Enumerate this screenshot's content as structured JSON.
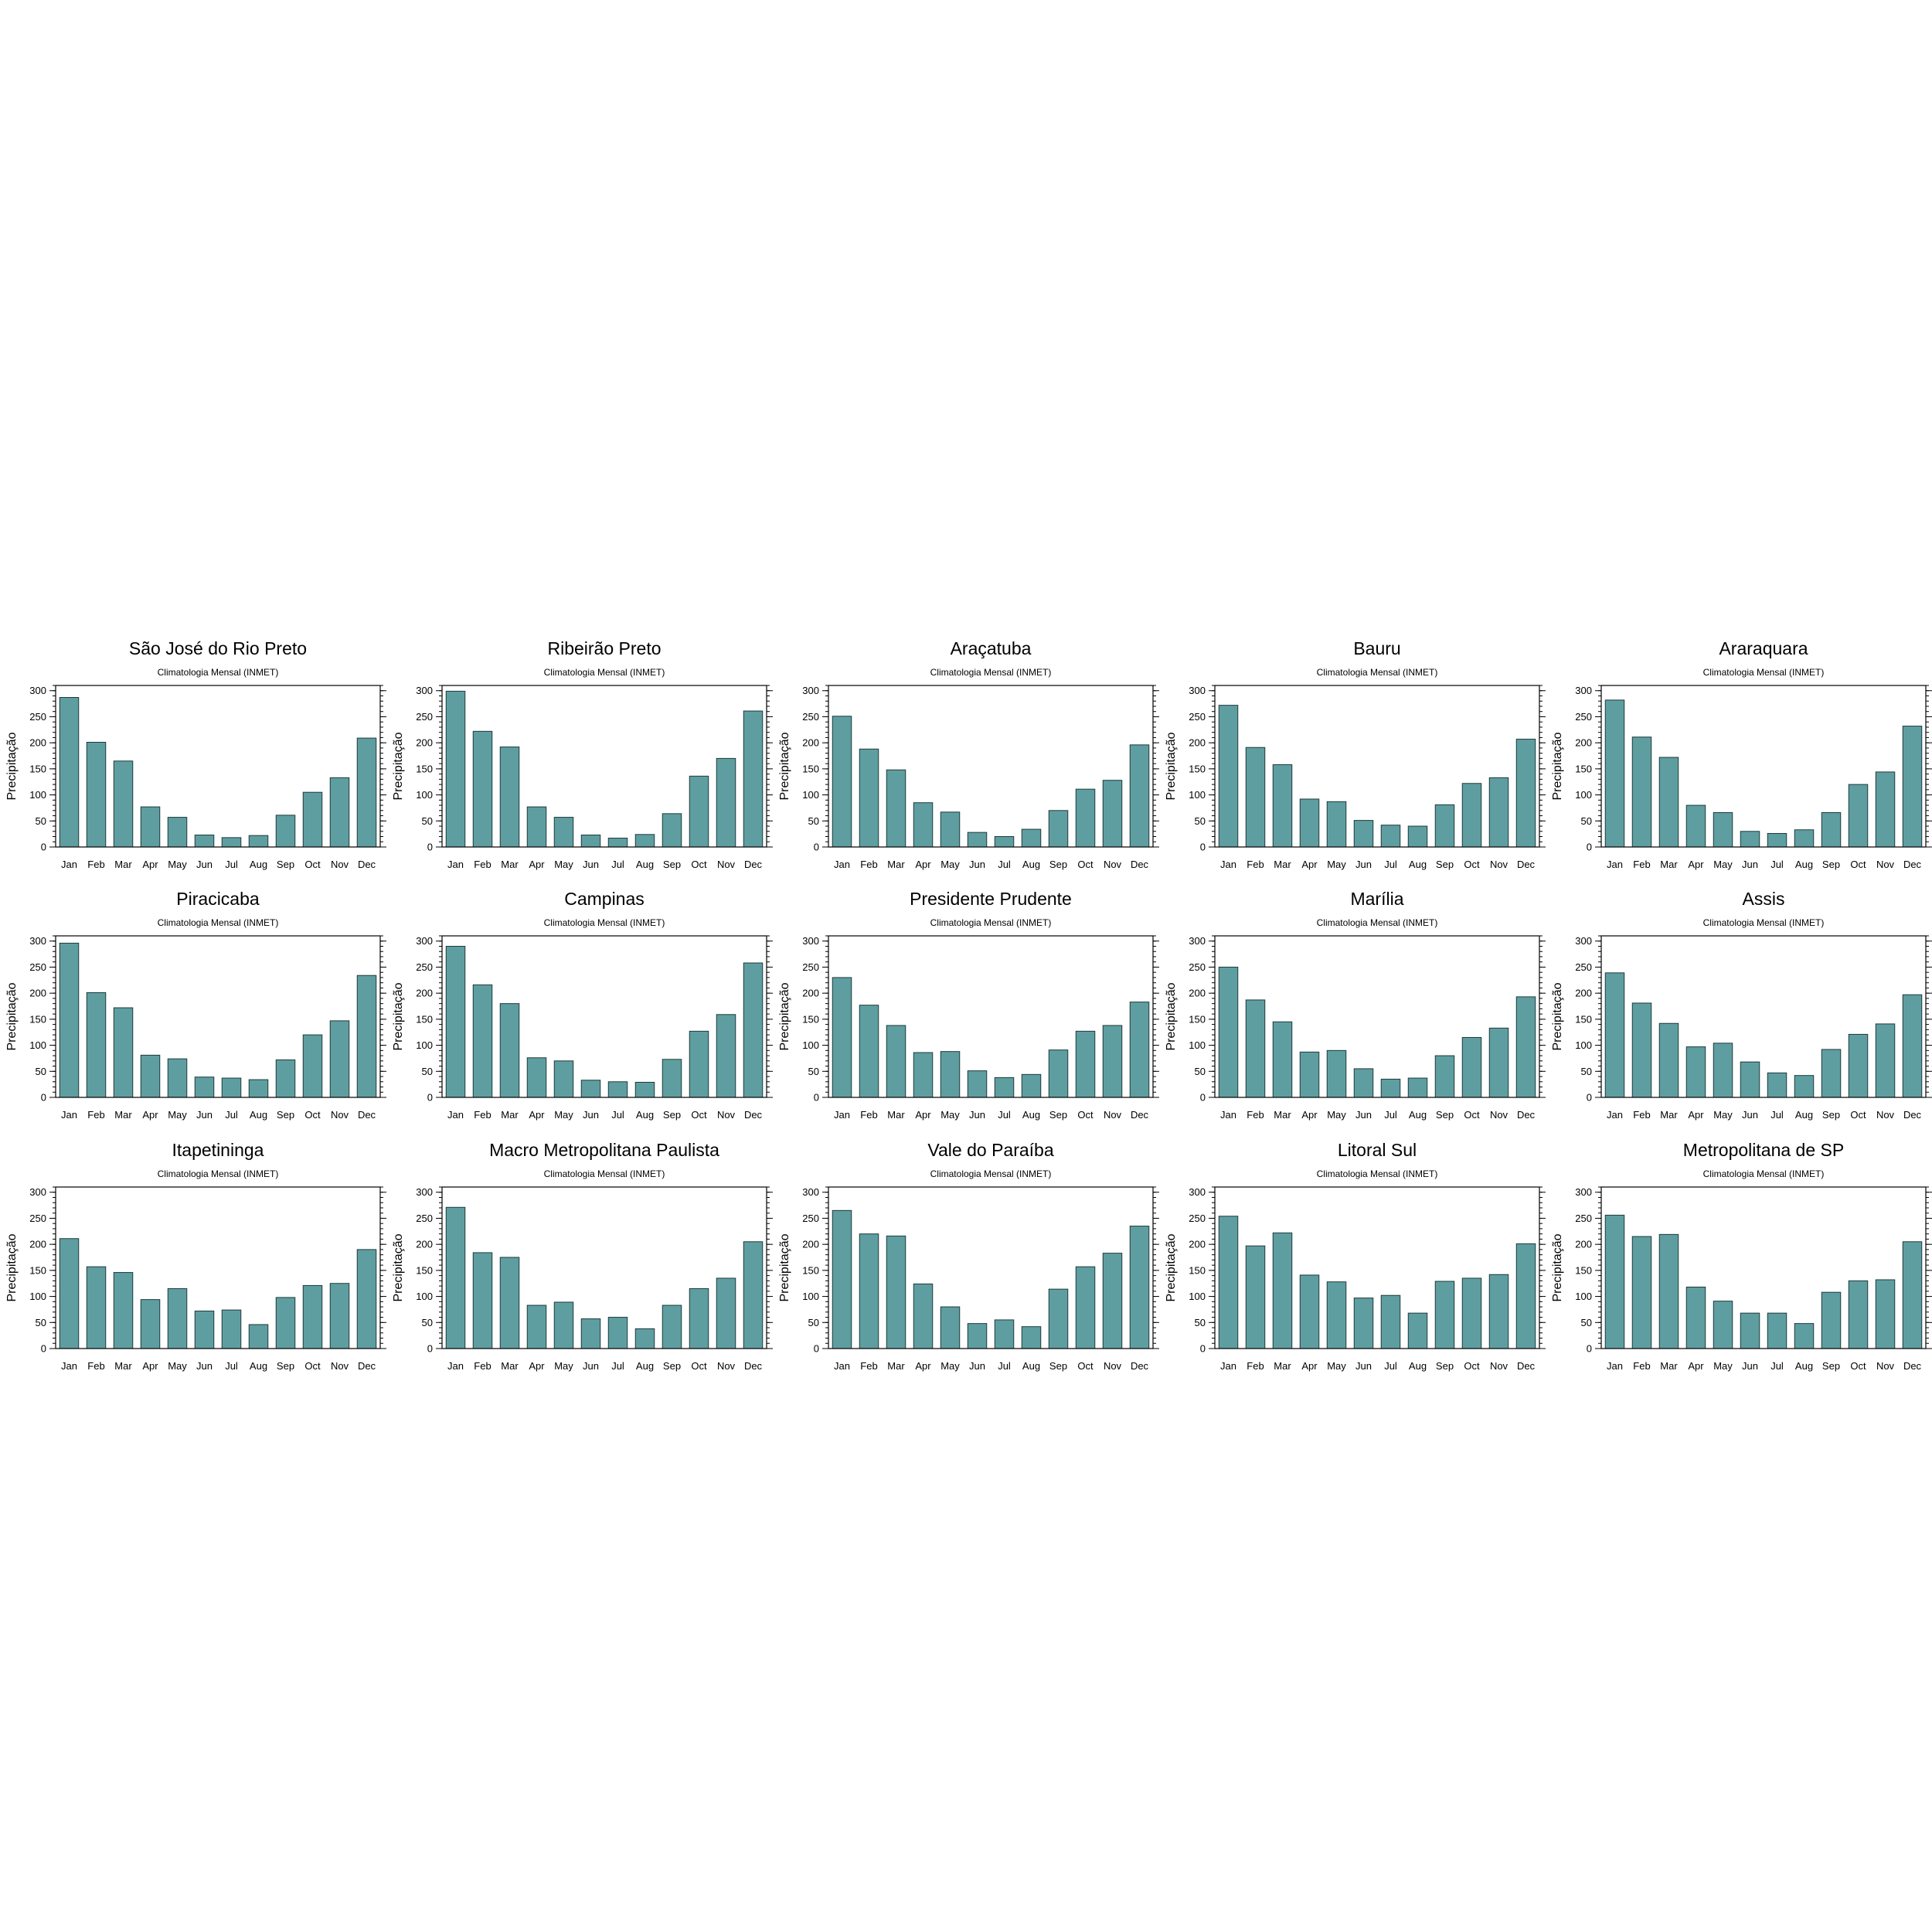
{
  "bar_color": "#5f9ea0",
  "chart_data": [
    {
      "type": "bar",
      "title": "São José do Rio Preto",
      "subtitle": "Climatologia Mensal (INMET)",
      "ylabel": "Precipitação",
      "ylim": [
        0,
        310
      ],
      "yticks": [
        0,
        50,
        100,
        150,
        200,
        250,
        300
      ],
      "categories": [
        "Jan",
        "Feb",
        "Mar",
        "Apr",
        "May",
        "Jun",
        "Jul",
        "Aug",
        "Sep",
        "Oct",
        "Nov",
        "Dec"
      ],
      "values": [
        287,
        201,
        165,
        77,
        57,
        23,
        18,
        22,
        61,
        105,
        133,
        209
      ]
    },
    {
      "type": "bar",
      "title": "Ribeirão Preto",
      "subtitle": "Climatologia Mensal (INMET)",
      "ylabel": "Precipitação",
      "ylim": [
        0,
        310
      ],
      "yticks": [
        0,
        50,
        100,
        150,
        200,
        250,
        300
      ],
      "categories": [
        "Jan",
        "Feb",
        "Mar",
        "Apr",
        "May",
        "Jun",
        "Jul",
        "Aug",
        "Sep",
        "Oct",
        "Nov",
        "Dec"
      ],
      "values": [
        299,
        222,
        192,
        77,
        57,
        23,
        17,
        24,
        64,
        136,
        170,
        261
      ]
    },
    {
      "type": "bar",
      "title": "Araçatuba",
      "subtitle": "Climatologia Mensal (INMET)",
      "ylabel": "Precipitação",
      "ylim": [
        0,
        310
      ],
      "yticks": [
        0,
        50,
        100,
        150,
        200,
        250,
        300
      ],
      "categories": [
        "Jan",
        "Feb",
        "Mar",
        "Apr",
        "May",
        "Jun",
        "Jul",
        "Aug",
        "Sep",
        "Oct",
        "Nov",
        "Dec"
      ],
      "values": [
        251,
        188,
        148,
        85,
        67,
        28,
        20,
        34,
        70,
        111,
        128,
        196
      ]
    },
    {
      "type": "bar",
      "title": "Bauru",
      "subtitle": "Climatologia Mensal (INMET)",
      "ylabel": "Precipitação",
      "ylim": [
        0,
        310
      ],
      "yticks": [
        0,
        50,
        100,
        150,
        200,
        250,
        300
      ],
      "categories": [
        "Jan",
        "Feb",
        "Mar",
        "Apr",
        "May",
        "Jun",
        "Jul",
        "Aug",
        "Sep",
        "Oct",
        "Nov",
        "Dec"
      ],
      "values": [
        272,
        191,
        158,
        92,
        87,
        51,
        42,
        40,
        81,
        122,
        133,
        207
      ]
    },
    {
      "type": "bar",
      "title": "Araraquara",
      "subtitle": "Climatologia Mensal (INMET)",
      "ylabel": "Precipitação",
      "ylim": [
        0,
        310
      ],
      "yticks": [
        0,
        50,
        100,
        150,
        200,
        250,
        300
      ],
      "categories": [
        "Jan",
        "Feb",
        "Mar",
        "Apr",
        "May",
        "Jun",
        "Jul",
        "Aug",
        "Sep",
        "Oct",
        "Nov",
        "Dec"
      ],
      "values": [
        282,
        211,
        172,
        80,
        66,
        30,
        26,
        33,
        66,
        120,
        144,
        232
      ]
    },
    {
      "type": "bar",
      "title": "Piracicaba",
      "subtitle": "Climatologia Mensal (INMET)",
      "ylabel": "Precipitação",
      "ylim": [
        0,
        310
      ],
      "yticks": [
        0,
        50,
        100,
        150,
        200,
        250,
        300
      ],
      "categories": [
        "Jan",
        "Feb",
        "Mar",
        "Apr",
        "May",
        "Jun",
        "Jul",
        "Aug",
        "Sep",
        "Oct",
        "Nov",
        "Dec"
      ],
      "values": [
        296,
        201,
        172,
        81,
        74,
        39,
        37,
        34,
        72,
        120,
        147,
        234
      ]
    },
    {
      "type": "bar",
      "title": "Campinas",
      "subtitle": "Climatologia Mensal (INMET)",
      "ylabel": "Precipitação",
      "ylim": [
        0,
        310
      ],
      "yticks": [
        0,
        50,
        100,
        150,
        200,
        250,
        300
      ],
      "categories": [
        "Jan",
        "Feb",
        "Mar",
        "Apr",
        "May",
        "Jun",
        "Jul",
        "Aug",
        "Sep",
        "Oct",
        "Nov",
        "Dec"
      ],
      "values": [
        290,
        216,
        180,
        76,
        70,
        33,
        30,
        29,
        73,
        127,
        159,
        258
      ]
    },
    {
      "type": "bar",
      "title": "Presidente Prudente",
      "subtitle": "Climatologia Mensal (INMET)",
      "ylabel": "Precipitação",
      "ylim": [
        0,
        310
      ],
      "yticks": [
        0,
        50,
        100,
        150,
        200,
        250,
        300
      ],
      "categories": [
        "Jan",
        "Feb",
        "Mar",
        "Apr",
        "May",
        "Jun",
        "Jul",
        "Aug",
        "Sep",
        "Oct",
        "Nov",
        "Dec"
      ],
      "values": [
        230,
        177,
        138,
        86,
        88,
        51,
        38,
        44,
        91,
        127,
        138,
        183
      ]
    },
    {
      "type": "bar",
      "title": "Marília",
      "subtitle": "Climatologia Mensal (INMET)",
      "ylabel": "Precipitação",
      "ylim": [
        0,
        310
      ],
      "yticks": [
        0,
        50,
        100,
        150,
        200,
        250,
        300
      ],
      "categories": [
        "Jan",
        "Feb",
        "Mar",
        "Apr",
        "May",
        "Jun",
        "Jul",
        "Aug",
        "Sep",
        "Oct",
        "Nov",
        "Dec"
      ],
      "values": [
        250,
        187,
        145,
        87,
        90,
        55,
        35,
        37,
        80,
        115,
        133,
        193
      ]
    },
    {
      "type": "bar",
      "title": "Assis",
      "subtitle": "Climatologia Mensal (INMET)",
      "ylabel": "Precipitação",
      "ylim": [
        0,
        310
      ],
      "yticks": [
        0,
        50,
        100,
        150,
        200,
        250,
        300
      ],
      "categories": [
        "Jan",
        "Feb",
        "Mar",
        "Apr",
        "May",
        "Jun",
        "Jul",
        "Aug",
        "Sep",
        "Oct",
        "Nov",
        "Dec"
      ],
      "values": [
        239,
        181,
        142,
        97,
        104,
        68,
        47,
        42,
        92,
        121,
        141,
        197
      ]
    },
    {
      "type": "bar",
      "title": "Itapetininga",
      "subtitle": "Climatologia Mensal (INMET)",
      "ylabel": "Precipitação",
      "ylim": [
        0,
        310
      ],
      "yticks": [
        0,
        50,
        100,
        150,
        200,
        250,
        300
      ],
      "categories": [
        "Jan",
        "Feb",
        "Mar",
        "Apr",
        "May",
        "Jun",
        "Jul",
        "Aug",
        "Sep",
        "Oct",
        "Nov",
        "Dec"
      ],
      "values": [
        211,
        157,
        146,
        94,
        115,
        72,
        74,
        46,
        98,
        121,
        125,
        190
      ]
    },
    {
      "type": "bar",
      "title": "Macro Metropolitana Paulista",
      "subtitle": "Climatologia Mensal (INMET)",
      "ylabel": "Precipitação",
      "ylim": [
        0,
        310
      ],
      "yticks": [
        0,
        50,
        100,
        150,
        200,
        250,
        300
      ],
      "categories": [
        "Jan",
        "Feb",
        "Mar",
        "Apr",
        "May",
        "Jun",
        "Jul",
        "Aug",
        "Sep",
        "Oct",
        "Nov",
        "Dec"
      ],
      "values": [
        271,
        184,
        175,
        83,
        89,
        57,
        60,
        38,
        83,
        115,
        135,
        205
      ]
    },
    {
      "type": "bar",
      "title": "Vale do Paraíba",
      "subtitle": "Climatologia Mensal (INMET)",
      "ylabel": "Precipitação",
      "ylim": [
        0,
        310
      ],
      "yticks": [
        0,
        50,
        100,
        150,
        200,
        250,
        300
      ],
      "categories": [
        "Jan",
        "Feb",
        "Mar",
        "Apr",
        "May",
        "Jun",
        "Jul",
        "Aug",
        "Sep",
        "Oct",
        "Nov",
        "Dec"
      ],
      "values": [
        265,
        220,
        216,
        124,
        80,
        48,
        55,
        42,
        114,
        157,
        183,
        235
      ]
    },
    {
      "type": "bar",
      "title": "Litoral Sul",
      "subtitle": "Climatologia Mensal (INMET)",
      "ylabel": "Precipitação",
      "ylim": [
        0,
        310
      ],
      "yticks": [
        0,
        50,
        100,
        150,
        200,
        250,
        300
      ],
      "categories": [
        "Jan",
        "Feb",
        "Mar",
        "Apr",
        "May",
        "Jun",
        "Jul",
        "Aug",
        "Sep",
        "Oct",
        "Nov",
        "Dec"
      ],
      "values": [
        254,
        197,
        222,
        141,
        128,
        97,
        102,
        68,
        129,
        135,
        142,
        201
      ]
    },
    {
      "type": "bar",
      "title": "Metropolitana de SP",
      "subtitle": "Climatologia Mensal (INMET)",
      "ylabel": "Precipitação",
      "ylim": [
        0,
        310
      ],
      "yticks": [
        0,
        50,
        100,
        150,
        200,
        250,
        300
      ],
      "categories": [
        "Jan",
        "Feb",
        "Mar",
        "Apr",
        "May",
        "Jun",
        "Jul",
        "Aug",
        "Sep",
        "Oct",
        "Nov",
        "Dec"
      ],
      "values": [
        256,
        215,
        219,
        118,
        91,
        68,
        68,
        48,
        108,
        130,
        132,
        205
      ]
    }
  ]
}
